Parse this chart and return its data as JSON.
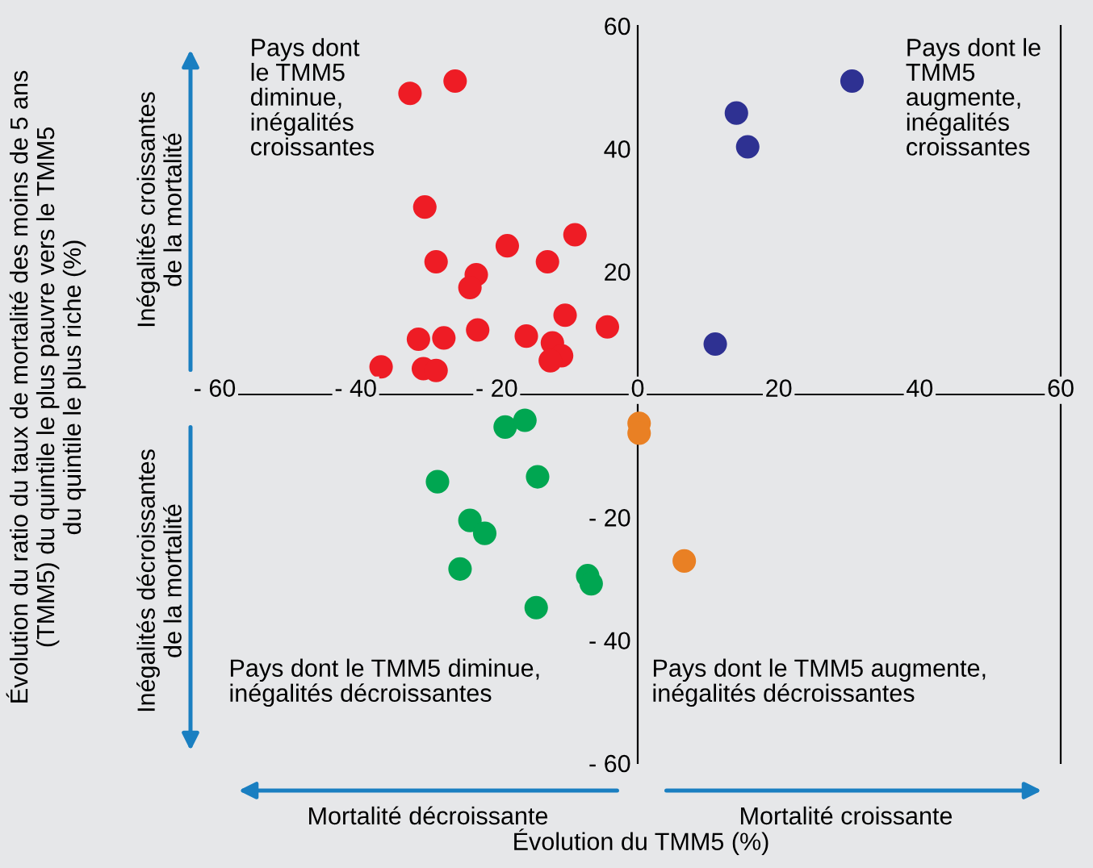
{
  "chart_data": {
    "type": "scatter",
    "xlabel": "Évolution du TMM5 (%)",
    "ylabel": "Évolution du ratio du taux de mortalité des moins de 5 ans\n(TMM5) du quintile le plus pauvre vers le TMM5\ndu quintile le plus riche (%)",
    "xlim": [
      -60,
      60
    ],
    "ylim": [
      -60,
      60
    ],
    "xticks": [
      {
        "value": -60,
        "label": "- 60"
      },
      {
        "value": -40,
        "label": "- 40"
      },
      {
        "value": -20,
        "label": "- 20"
      },
      0,
      20,
      40,
      60
    ],
    "yticks": [
      {
        "value": -60,
        "label": "- 60"
      },
      {
        "value": -40,
        "label": "- 40"
      },
      {
        "value": -20,
        "label": "- 20"
      },
      20,
      40,
      60
    ],
    "marker": "circle",
    "grid": false,
    "legend": false,
    "series": [
      {
        "color": "#ee1c25",
        "x": [
          -32.3,
          -25.9,
          -30.2,
          -28.6,
          -22.9,
          -23.8,
          -18.5,
          -12.8,
          -8.9,
          -36.4,
          -31.1,
          -30.4,
          -28.6,
          -27.5,
          -22.7,
          -15.8,
          -12.1,
          -10.8,
          -12.4,
          -10.3,
          -4.3
        ],
        "values": [
          49,
          51,
          30.5,
          21.6,
          19.5,
          17.4,
          24.2,
          21.6,
          26,
          4.5,
          9,
          4.2,
          3.9,
          9.2,
          10.5,
          9.5,
          8.4,
          6.3,
          5.5,
          12.9,
          11
        ]
      },
      {
        "color": "#2e3192",
        "x": [
          30.4,
          14,
          15.6,
          11
        ],
        "values": [
          51,
          45.8,
          40.3,
          8.2
        ]
      },
      {
        "color": "#e98024",
        "x": [
          0.2,
          0.2,
          6.6
        ],
        "values": [
          -4.7,
          -6.3,
          -27.1
        ]
      },
      {
        "color": "#00a651",
        "x": [
          -18.8,
          -16,
          -28.4,
          -14.2,
          -23.8,
          -21.7,
          -25.2,
          -7.1,
          -6.6,
          -14.4
        ],
        "values": [
          -5.3,
          -4.2,
          -14.2,
          -13.4,
          -20.5,
          -22.6,
          -28.4,
          -29.5,
          -30.8,
          -34.7
        ]
      }
    ],
    "annotations": [
      "Pays dont\nle TMM5\ndiminue,\ninégalités\ncroissantes",
      "Pays dont le\nTMM5\naugmente,\ninégalités\ncroissantes",
      "Pays dont le TMM5 diminue,\ninégalités décroissantes",
      "Pays dont le TMM5 augmente,\ninégalités décroissantes",
      "Inégalités croissantes\nde la mortalité",
      "Inégalités décroissantes\nde la mortalité",
      "Mortalité décroissante",
      "Mortalité croissante"
    ]
  }
}
